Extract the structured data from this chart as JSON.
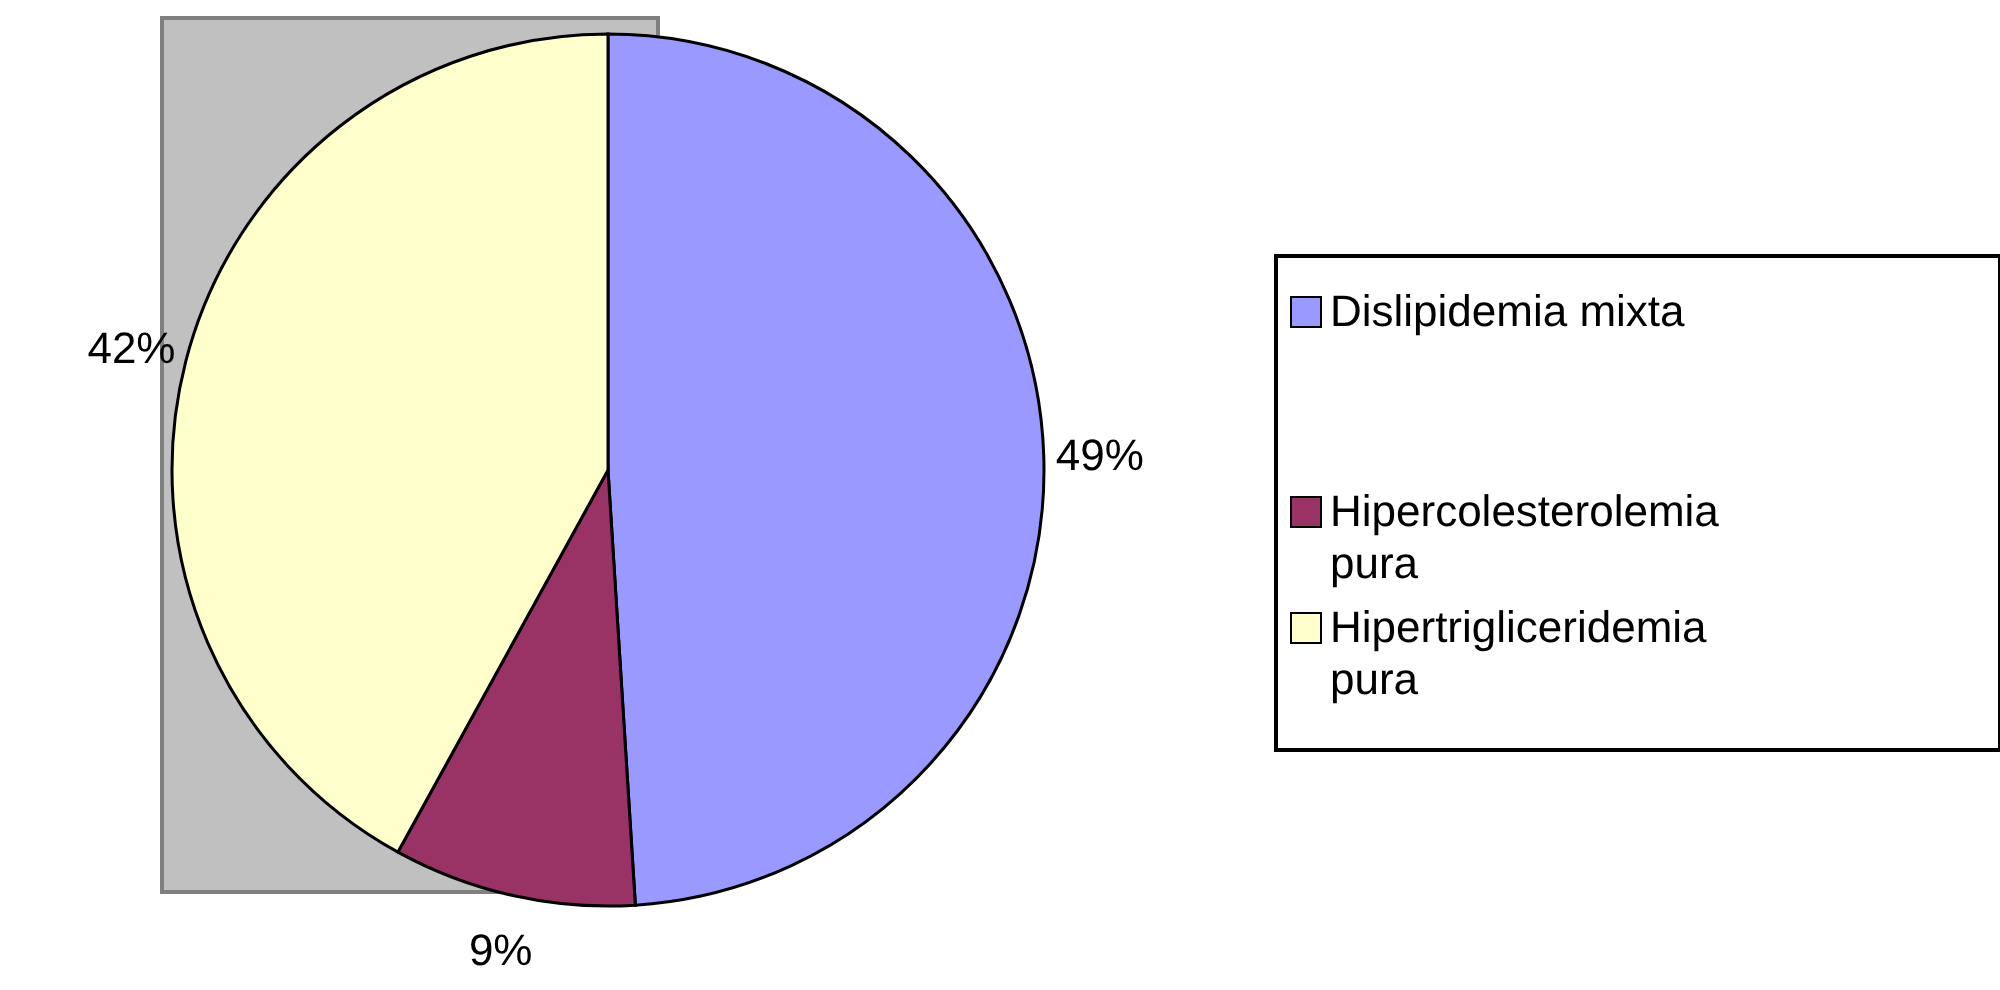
{
  "chart_data": {
    "type": "pie",
    "categories": [
      "Dislipidemia mixta",
      "Hipercolesterolemia pura",
      "Hipertrigliceridemia pura"
    ],
    "values": [
      49,
      9,
      42
    ],
    "colors": [
      "#9999ff",
      "#993366",
      "#ffffcc"
    ],
    "value_labels": [
      "49%",
      "9%",
      "42%"
    ],
    "legend": "right"
  }
}
